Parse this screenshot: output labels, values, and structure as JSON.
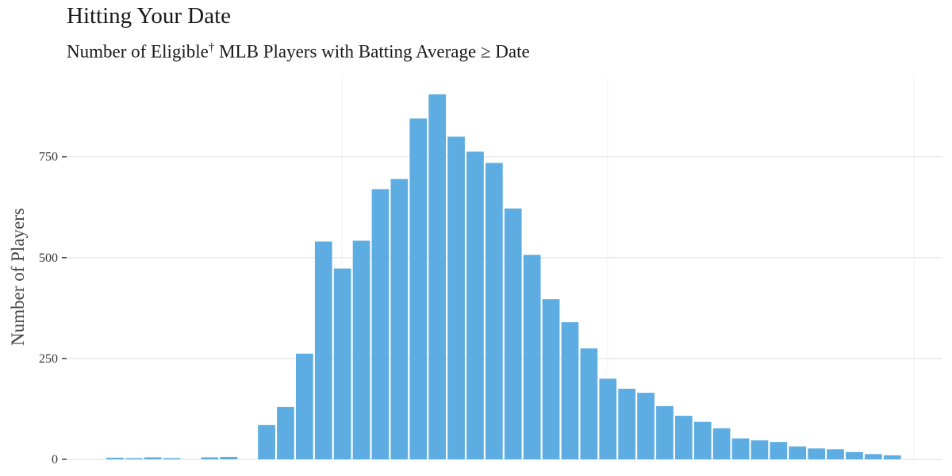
{
  "chart_data": {
    "type": "bar",
    "title": "Hitting Your Date",
    "subtitle_main": "Number of Eligible",
    "subtitle_mark": "†",
    "subtitle_rest": " MLB Players with Batting Average ≥ Date",
    "xlabel": "",
    "ylabel": "Number of Players",
    "ylim": [
      0,
      950
    ],
    "yticks": [
      0,
      250,
      500,
      750
    ],
    "ytick_labels": [
      "0",
      "250",
      "500",
      "750"
    ],
    "grid": true,
    "bar_color": "#5dade2",
    "values": [
      4,
      3,
      5,
      3,
      0,
      5,
      6,
      0,
      85,
      130,
      262,
      540,
      473,
      542,
      670,
      695,
      845,
      905,
      800,
      763,
      735,
      622,
      507,
      397,
      340,
      275,
      200,
      175,
      165,
      132,
      108,
      93,
      77,
      52,
      47,
      43,
      32,
      27,
      25,
      18,
      13,
      10
    ]
  }
}
